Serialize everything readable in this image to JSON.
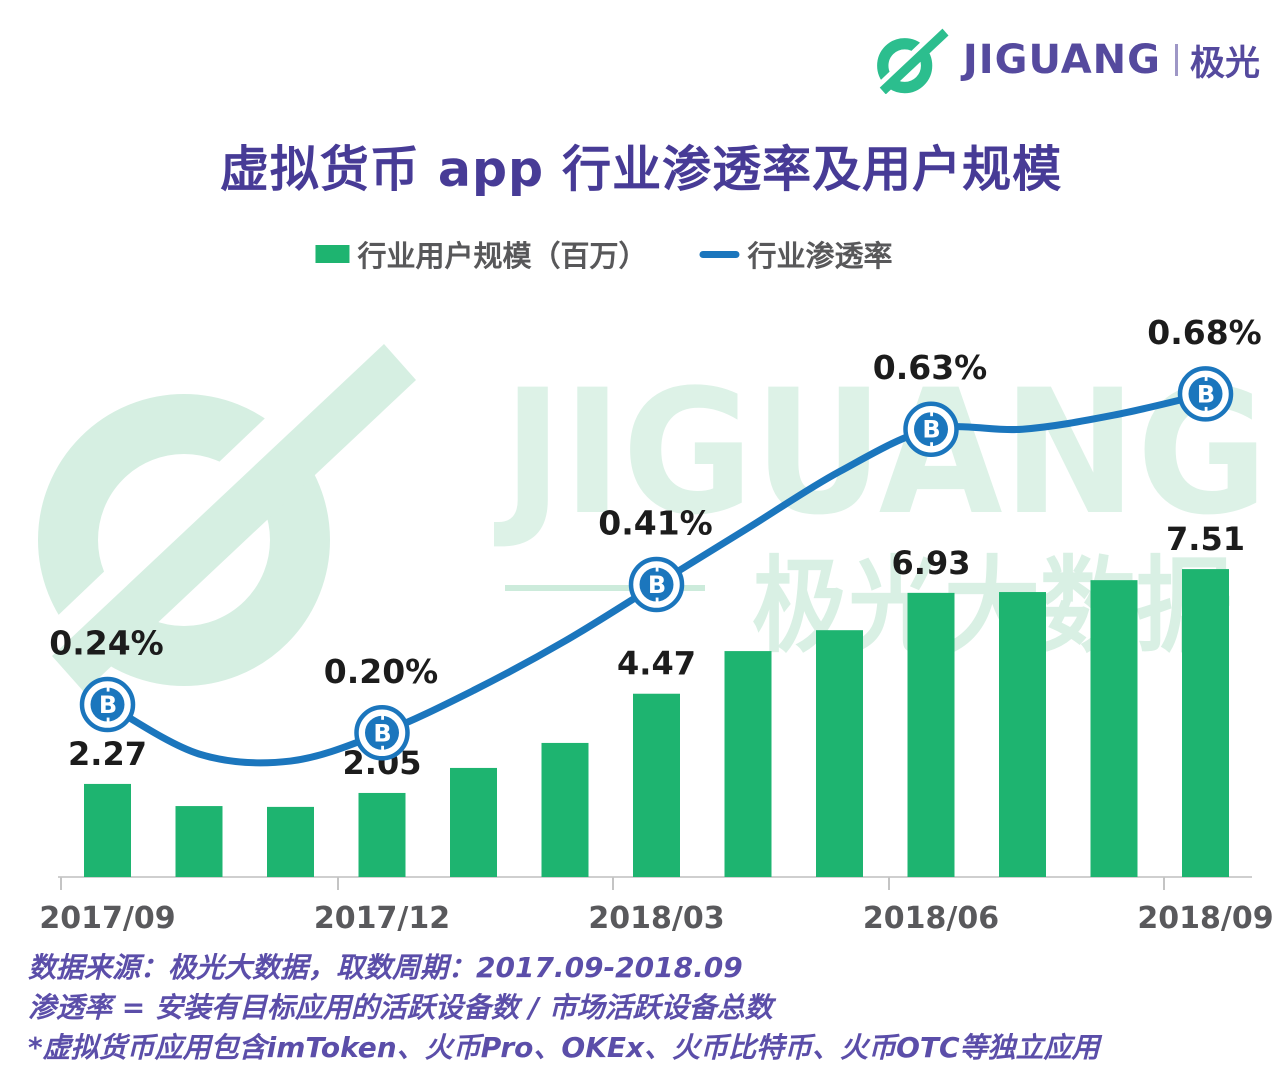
{
  "brand": {
    "name": "JIGUANG",
    "cn": "极光"
  },
  "title": "虚拟货币 app 行业渗透率及用户规模",
  "legend": {
    "bars_label": "行业用户规模（百万）",
    "line_label": "行业渗透率"
  },
  "watermark": {
    "latin": "JIGUANG",
    "cn": "极光大数据"
  },
  "colors": {
    "bar_green": "#1EB470",
    "line_blue": "#1B76BD",
    "title_purple": "#473B96",
    "footer_purple": "#5B4EA9",
    "brand_green": "#2CBE8E",
    "watermark_green": "#D6EFE2",
    "watermark_text_green": "#DDF2E7",
    "axis_gray": "#CFCFCF"
  },
  "chart_data": {
    "type": "bar+line combo",
    "title": "虚拟货币 app 行业渗透率及用户规模",
    "categories": [
      "2017/09",
      "2017/10",
      "2017/11",
      "2017/12",
      "2018/01",
      "2018/02",
      "2018/03",
      "2018/04",
      "2018/05",
      "2018/06",
      "2018/07",
      "2018/08",
      "2018/09"
    ],
    "x_tick_labels": [
      "2017/09",
      "2017/12",
      "2018/03",
      "2018/06",
      "2018/09"
    ],
    "marker_indices": [
      0,
      3,
      6,
      9,
      12
    ],
    "grid": "off",
    "legend_position": "top",
    "series": [
      {
        "name": "行业用户规模（百万）",
        "type": "bar",
        "values": [
          2.27,
          1.73,
          1.71,
          2.05,
          2.66,
          3.27,
          4.47,
          5.51,
          6.02,
          6.93,
          6.95,
          7.24,
          7.51
        ],
        "labels": [
          "2.27",
          null,
          null,
          "2.05",
          null,
          null,
          "4.47",
          null,
          null,
          "6.93",
          null,
          null,
          "7.51"
        ],
        "note": "unlabeled monthly values estimated from bar heights"
      },
      {
        "name": "行业渗透率",
        "type": "line",
        "unit": "%",
        "values": [
          0.24,
          0.17,
          0.16,
          0.2,
          0.26,
          0.33,
          0.41,
          0.49,
          0.57,
          0.63,
          0.63,
          0.65,
          0.68
        ],
        "labels": [
          "0.24%",
          null,
          null,
          "0.20%",
          null,
          null,
          "0.41%",
          null,
          null,
          "0.63%",
          null,
          null,
          "0.68%"
        ],
        "note": "unlabeled monthly values estimated from curve shape"
      }
    ]
  },
  "footnotes": [
    "数据来源：极光大数据，取数周期：2017.09-2018.09",
    "渗透率 = 安装有目标应用的活跃设备数 / 市场活跃设备总数",
    "*虚拟货币应用包含imToken、火币Pro、OKEx、火币比特币、火币OTC等独立应用"
  ]
}
